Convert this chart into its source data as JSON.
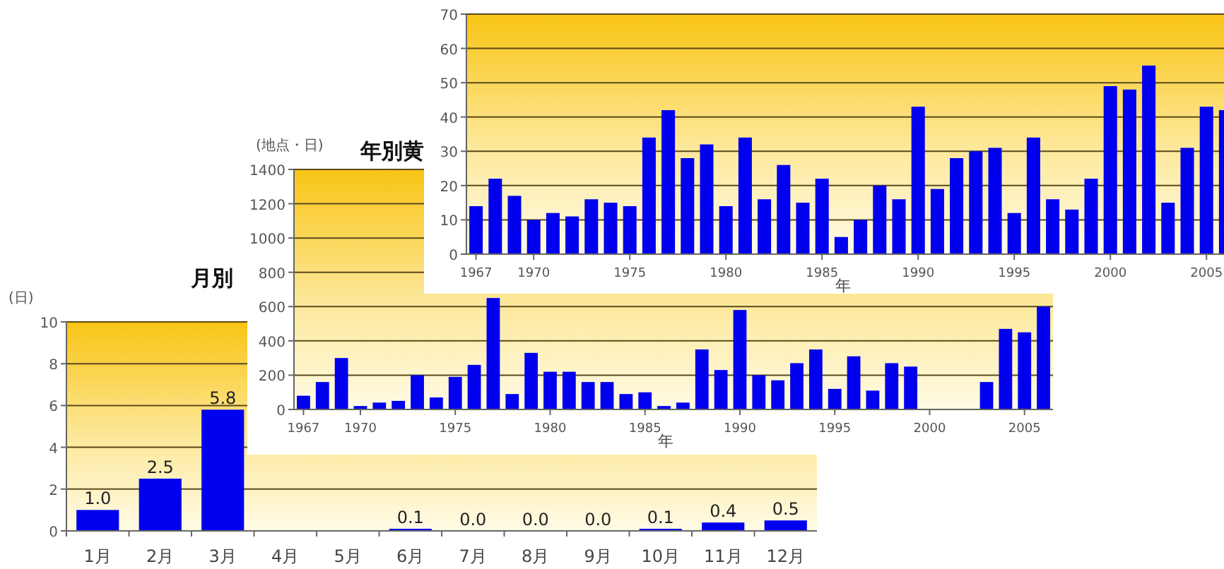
{
  "chart_data": [
    {
      "type": "bar",
      "xlabel": "年",
      "x": [
        1967,
        1968,
        1969,
        1970,
        1971,
        1972,
        1973,
        1974,
        1975,
        1976,
        1977,
        1978,
        1979,
        1980,
        1981,
        1982,
        1983,
        1984,
        1985,
        1986,
        1987,
        1988,
        1989,
        1990,
        1991,
        1992,
        1993,
        1994,
        1995,
        1996,
        1997,
        1998,
        1999,
        2000,
        2001,
        2002,
        2003,
        2004,
        2005,
        2006
      ],
      "values": [
        14,
        22,
        17,
        10,
        12,
        11,
        16,
        15,
        14,
        34,
        42,
        28,
        32,
        14,
        34,
        16,
        26,
        15,
        22,
        5,
        10,
        20,
        16,
        43,
        19,
        28,
        30,
        31,
        12,
        34,
        16,
        13,
        22,
        49,
        48,
        55,
        15,
        31,
        43,
        42
      ],
      "color": "#0000ee",
      "xlim": [
        1966.5,
        2006.5
      ],
      "xticks": [
        1967,
        1970,
        1975,
        1980,
        1985,
        1990,
        1995,
        2000,
        2005
      ],
      "ylim": [
        0,
        70
      ],
      "yticks": [
        0,
        10,
        20,
        30,
        40,
        50,
        60,
        70
      ],
      "grid": "y"
    },
    {
      "type": "bar",
      "title": "年別黄",
      "ylabel": "(地点・日)",
      "xlabel": "年",
      "x": [
        1967,
        1968,
        1969,
        1970,
        1971,
        1972,
        1973,
        1974,
        1975,
        1976,
        1977,
        1978,
        1979,
        1980,
        1981,
        1982,
        1983,
        1984,
        1985,
        1986,
        1987,
        1988,
        1989,
        1990,
        1991,
        1992,
        1993,
        1994,
        1995,
        1996,
        1997,
        1998,
        1999,
        2003,
        2004,
        2005,
        2006
      ],
      "values": [
        80,
        160,
        300,
        20,
        40,
        50,
        200,
        70,
        190,
        260,
        650,
        90,
        330,
        220,
        220,
        160,
        160,
        90,
        100,
        20,
        40,
        350,
        230,
        580,
        200,
        170,
        270,
        350,
        120,
        310,
        110,
        270,
        250,
        160,
        470,
        450,
        600
      ],
      "color": "#0000ee",
      "xlim": [
        1966.5,
        2006.5
      ],
      "xticks": [
        1967,
        1970,
        1975,
        1980,
        1985,
        1990,
        1995,
        2000,
        2005
      ],
      "ylim": [
        0,
        1400
      ],
      "yticks": [
        0,
        200,
        400,
        600,
        800,
        1000,
        1200,
        1400
      ],
      "grid": "y"
    },
    {
      "type": "bar",
      "title": "月別",
      "ylabel": "(日)",
      "categories": [
        "1月",
        "2月",
        "3月",
        "4月",
        "5月",
        "6月",
        "7月",
        "8月",
        "9月",
        "10月",
        "11月",
        "12月"
      ],
      "values": [
        1.0,
        2.5,
        5.8,
        null,
        null,
        0.1,
        0.0,
        0.0,
        0.0,
        0.1,
        0.4,
        0.5
      ],
      "value_labels": [
        "1.0",
        "2.5",
        "5.8",
        null,
        null,
        "0.1",
        "0.0",
        "0.0",
        "0.0",
        "0.1",
        "0.4",
        "0.5"
      ],
      "color": "#0000ee",
      "ylim": [
        0,
        10
      ],
      "yticks": [
        0,
        2,
        4,
        6,
        8,
        10
      ],
      "grid": "y"
    }
  ]
}
